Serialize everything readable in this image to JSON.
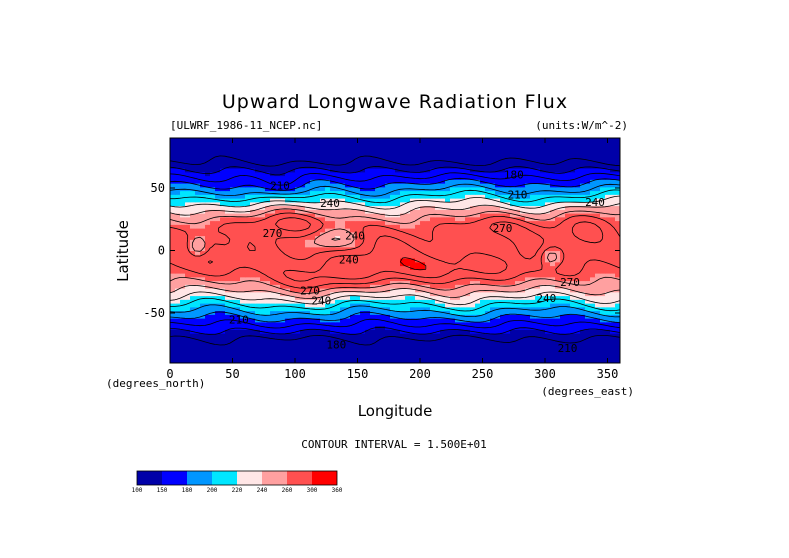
{
  "chart_data": {
    "type": "heatmap",
    "title": "Upward Longwave Radiation Flux",
    "subtitle_left": "[ULWRF_1986-11_NCEP.nc]",
    "subtitle_right": "(units:W/m^-2)",
    "xlabel": "Longitude",
    "ylabel": "Latitude",
    "x_unit_note": "(degrees_east)",
    "y_unit_note": "(degrees_north)",
    "xlim": [
      0,
      360
    ],
    "ylim": [
      -90,
      90
    ],
    "x_ticks": [
      0,
      50,
      100,
      150,
      200,
      250,
      300,
      350
    ],
    "y_ticks": [
      -50,
      0,
      50
    ],
    "contour_interval_text": "CONTOUR INTERVAL = 1.500E+01",
    "colorbar": {
      "levels": [
        100,
        150,
        180,
        200,
        220,
        240,
        260,
        300,
        360
      ],
      "colors": [
        "#0000a8",
        "#0000ff",
        "#0096ff",
        "#00e6ff",
        "#ffe6e6",
        "#ffa0a0",
        "#ff5050",
        "#ff0000"
      ]
    },
    "contour_labels": [
      {
        "x": 88,
        "y": 52,
        "text": "210"
      },
      {
        "x": 128,
        "y": 38,
        "text": "240"
      },
      {
        "x": 82,
        "y": 14,
        "text": "270"
      },
      {
        "x": 148,
        "y": 12,
        "text": "240"
      },
      {
        "x": 143,
        "y": -7,
        "text": "240"
      },
      {
        "x": 112,
        "y": -32,
        "text": "270"
      },
      {
        "x": 121,
        "y": -40,
        "text": "240"
      },
      {
        "x": 55,
        "y": -55,
        "text": "210"
      },
      {
        "x": 133,
        "y": -75,
        "text": "180"
      },
      {
        "x": 266,
        "y": 18,
        "text": "270"
      },
      {
        "x": 275,
        "y": 61,
        "text": "180"
      },
      {
        "x": 278,
        "y": 45,
        "text": "210"
      },
      {
        "x": 340,
        "y": 39,
        "text": "240"
      },
      {
        "x": 301,
        "y": -38,
        "text": "240"
      },
      {
        "x": 320,
        "y": -25,
        "text": "270"
      },
      {
        "x": 318,
        "y": -78,
        "text": "210"
      }
    ]
  }
}
